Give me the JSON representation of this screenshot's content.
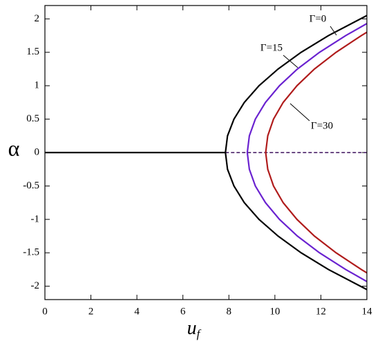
{
  "chart_data": {
    "type": "line",
    "xlabel": {
      "text": "u",
      "sub": "f"
    },
    "ylabel": "α",
    "xlim": [
      0,
      14
    ],
    "ylim": [
      -2.2,
      2.2
    ],
    "xticks": [
      0,
      2,
      4,
      6,
      8,
      10,
      12,
      14
    ],
    "yticks": [
      -2,
      -1.5,
      -1,
      -0.5,
      0,
      0.5,
      1,
      1.5,
      2
    ],
    "grid": false,
    "series": [
      {
        "color": "#000000",
        "dashed": false,
        "x": [
          0,
          7.85
        ],
        "values": [
          0,
          0
        ]
      },
      {
        "color": "#3a0d5a",
        "dashed": true,
        "x": [
          7.85,
          14
        ],
        "values": [
          0,
          0
        ]
      },
      {
        "name": "Γ=0",
        "color": "#000000",
        "dashed": false,
        "x": [
          14,
          12.33,
          11.14,
          10.14,
          9.31,
          8.67,
          8.22,
          7.94,
          7.85,
          7.94,
          8.22,
          8.67,
          9.31,
          10.14,
          11.14,
          12.33,
          14
        ],
        "values": [
          -2.05,
          -1.75,
          -1.5,
          -1.25,
          -1,
          -0.75,
          -0.5,
          -0.25,
          0,
          0.25,
          0.5,
          0.75,
          1,
          1.25,
          1.5,
          1.75,
          2.05
        ]
      },
      {
        "name": "Γ=15",
        "color": "#6a22d0",
        "dashed": false,
        "x": [
          14,
          13.08,
          11.94,
          10.98,
          10.2,
          9.59,
          9.15,
          8.89,
          8.8,
          8.89,
          9.15,
          9.59,
          10.2,
          10.98,
          11.94,
          13.08,
          14
        ],
        "values": [
          -1.93,
          -1.75,
          -1.5,
          -1.25,
          -1,
          -0.75,
          -0.5,
          -0.25,
          0,
          0.25,
          0.5,
          0.75,
          1,
          1.25,
          1.5,
          1.75,
          1.93
        ]
      },
      {
        "name": "Γ=30",
        "color": "#b01c1c",
        "dashed": false,
        "x": [
          14,
          13.76,
          12.66,
          11.72,
          10.96,
          10.36,
          9.94,
          9.69,
          9.6,
          9.69,
          9.94,
          10.36,
          10.96,
          11.72,
          12.66,
          13.76,
          14
        ],
        "values": [
          -1.8,
          -1.75,
          -1.5,
          -1.25,
          -1,
          -0.75,
          -0.5,
          -0.25,
          0,
          0.25,
          0.5,
          0.75,
          1,
          1.25,
          1.5,
          1.75,
          1.8
        ]
      }
    ]
  }
}
